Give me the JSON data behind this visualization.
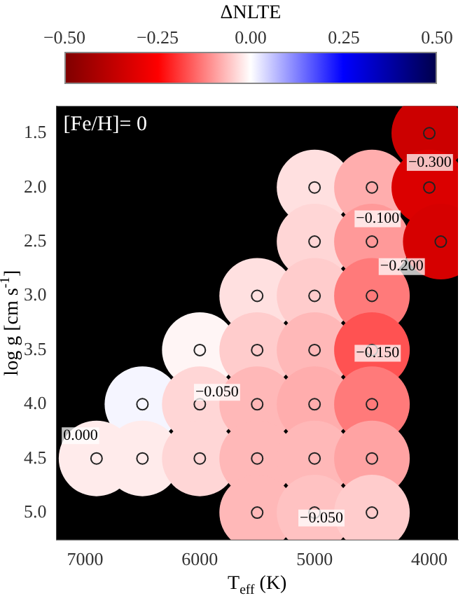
{
  "chart_data": {
    "type": "scatter",
    "xlabel": "T$_{eff}$ (K)",
    "ylabel": "log g [cm s$^{-1}$]",
    "clabel": "ΔNLTE",
    "x": [
      4000,
      5000,
      4500,
      4000,
      5000,
      4500,
      3900,
      5500,
      5000,
      4500,
      6000,
      5500,
      5000,
      4500,
      6500,
      6000,
      5500,
      5000,
      4500,
      6900,
      6500,
      6000,
      5500,
      5000,
      4500,
      5500,
      5000,
      4500
    ],
    "values": [
      1.5,
      2.0,
      2.0,
      2.0,
      2.5,
      2.5,
      2.5,
      3.0,
      3.0,
      3.0,
      3.5,
      3.5,
      3.5,
      3.5,
      4.0,
      4.0,
      4.0,
      4.0,
      4.0,
      4.5,
      4.5,
      4.5,
      4.5,
      4.5,
      4.5,
      5.0,
      5.0,
      5.0
    ],
    "cvalues": [
      -0.35,
      -0.03,
      -0.08,
      -0.32,
      -0.04,
      -0.1,
      -0.33,
      -0.03,
      -0.05,
      -0.13,
      -0.01,
      -0.05,
      -0.07,
      -0.17,
      0.01,
      -0.04,
      -0.07,
      -0.08,
      -0.13,
      -0.02,
      -0.02,
      -0.04,
      -0.07,
      -0.07,
      -0.09,
      -0.07,
      -0.06,
      -0.05
    ],
    "clim": [
      -0.5,
      0.5
    ],
    "cticks": [
      {
        "value": -0.5,
        "label": "−0.50"
      },
      {
        "value": -0.25,
        "label": "−0.25"
      },
      {
        "value": 0,
        "label": "0.00"
      },
      {
        "value": 0.25,
        "label": "0.25"
      },
      {
        "value": 0.5,
        "label": "0.50"
      }
    ],
    "xlim": [
      7250,
      3750
    ],
    "xticks": [
      7000,
      6000,
      5000,
      4000
    ],
    "ylim": [
      5.25,
      1.25
    ],
    "yticks": [
      {
        "value": 1.5,
        "label": "1.5"
      },
      {
        "value": 2,
        "label": "2.0"
      },
      {
        "value": 2.5,
        "label": "2.5"
      },
      {
        "value": 3,
        "label": "3.0"
      },
      {
        "value": 3.5,
        "label": "3.5"
      },
      {
        "value": 4,
        "label": "4.0"
      },
      {
        "value": 4.5,
        "label": "4.5"
      },
      {
        "value": 5,
        "label": "5.0"
      }
    ],
    "marker": "circle",
    "grid": false,
    "legend": false,
    "annotations": [
      "[Fe/H]= 0",
      "0.000",
      "−0.050",
      "−0.050",
      "−0.100",
      "−0.150",
      "−0.200",
      "−0.300"
    ]
  }
}
